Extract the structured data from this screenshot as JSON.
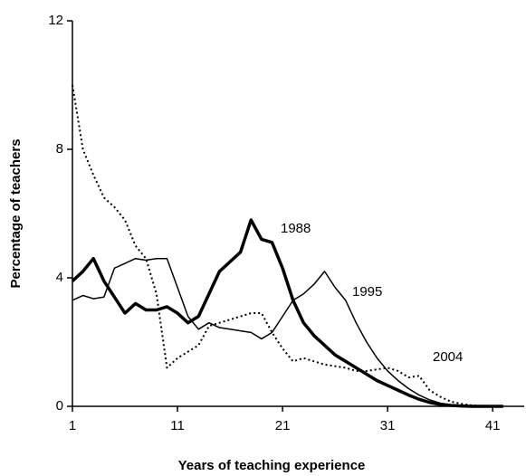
{
  "chart_data": {
    "type": "line",
    "x_label": "Years of teaching experience",
    "y_label": "Percentage of teachers",
    "x": [
      1,
      2,
      3,
      4,
      5,
      6,
      7,
      8,
      9,
      10,
      11,
      12,
      13,
      14,
      15,
      16,
      17,
      18,
      19,
      20,
      21,
      22,
      23,
      24,
      25,
      26,
      27,
      28,
      29,
      30,
      31,
      32,
      33,
      34,
      35,
      36,
      37,
      38,
      39,
      40,
      41,
      42
    ],
    "series": [
      {
        "name": "1988",
        "color": "#000000",
        "style": "thick",
        "values": [
          3.9,
          4.2,
          4.6,
          3.9,
          3.4,
          2.9,
          3.2,
          3.0,
          3.0,
          3.1,
          2.9,
          2.6,
          2.8,
          3.5,
          4.2,
          4.5,
          4.8,
          5.8,
          5.2,
          5.1,
          4.3,
          3.3,
          2.6,
          2.2,
          1.9,
          1.6,
          1.4,
          1.2,
          1.0,
          0.8,
          0.65,
          0.5,
          0.35,
          0.22,
          0.12,
          0.06,
          0.03,
          0.01,
          0,
          0,
          0,
          0
        ]
      },
      {
        "name": "1995",
        "color": "#000000",
        "style": "thin",
        "values": [
          3.3,
          3.45,
          3.35,
          3.4,
          4.3,
          4.45,
          4.6,
          4.55,
          4.6,
          4.6,
          3.7,
          2.8,
          2.4,
          2.6,
          2.45,
          2.4,
          2.35,
          2.3,
          2.1,
          2.3,
          2.8,
          3.3,
          3.5,
          3.8,
          4.2,
          3.7,
          3.3,
          2.6,
          2.0,
          1.5,
          1.1,
          0.8,
          0.55,
          0.35,
          0.2,
          0.1,
          0.05,
          0.02,
          0.01,
          0,
          0,
          0
        ]
      },
      {
        "name": "2004",
        "color": "#000000",
        "style": "dotted",
        "values": [
          10.0,
          8.0,
          7.2,
          6.5,
          6.2,
          5.8,
          5.0,
          4.6,
          3.5,
          1.2,
          1.5,
          1.7,
          1.9,
          2.5,
          2.6,
          2.7,
          2.8,
          2.9,
          2.9,
          2.3,
          1.8,
          1.4,
          1.5,
          1.4,
          1.3,
          1.25,
          1.2,
          1.1,
          1.1,
          1.15,
          1.2,
          1.1,
          0.9,
          0.95,
          0.5,
          0.3,
          0.15,
          0.08,
          0.03,
          0.01,
          0,
          0
        ]
      }
    ],
    "xlim": [
      1,
      44
    ],
    "xticks": [
      1,
      11,
      21,
      31,
      41
    ],
    "ylim": [
      0,
      12
    ],
    "yticks": [
      0,
      4,
      8,
      12
    ],
    "grid": false
  }
}
